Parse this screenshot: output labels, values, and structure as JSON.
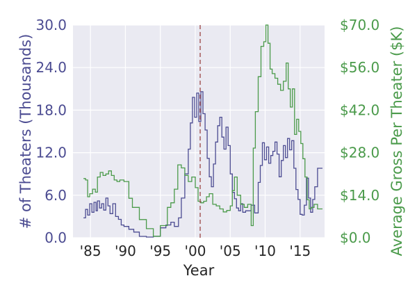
{
  "chart_data": {
    "type": "line",
    "xlabel": "Year",
    "ylabel_left": "# of Theaters (Thousands)",
    "ylabel_right": "Average Gross Per Theater ($K)",
    "xlim": [
      1982.5,
      2018.5
    ],
    "ylim_left": [
      0,
      30
    ],
    "ylim_right": [
      0,
      70
    ],
    "left_ticks": [
      "0.0",
      "6.0",
      "12.0",
      "18.0",
      "24.0",
      "30.0"
    ],
    "right_ticks": [
      "$0.0",
      "$14.0",
      "$28.0",
      "$42.0",
      "$56.0",
      "$70.0"
    ],
    "x_ticks": [
      {
        "value": 1985,
        "label": "'85"
      },
      {
        "value": 1990,
        "label": "'90"
      },
      {
        "value": 1995,
        "label": "'95"
      },
      {
        "value": 2000,
        "label": "'00"
      },
      {
        "value": 2005,
        "label": "'05"
      },
      {
        "value": 2010,
        "label": "'10"
      },
      {
        "value": 2015,
        "label": "'15"
      }
    ],
    "vline": {
      "x": 2000.7,
      "style": "dashed",
      "color": "#a05050"
    },
    "grid": true,
    "colors": {
      "left": "#4b4b91",
      "right": "#4a9a4a",
      "background": "#eaeaf2",
      "grid": "#ffffff"
    },
    "series": [
      {
        "name": "# of Theaters (Thousands)",
        "axis": "left",
        "color": "#4b4b91",
        "x": [
          1984.0,
          1984.3,
          1984.6,
          1984.9,
          1985.2,
          1985.5,
          1985.8,
          1986.0,
          1986.3,
          1986.6,
          1986.9,
          1987.2,
          1987.5,
          1987.8,
          1988.2,
          1988.6,
          1989.0,
          1989.4,
          1989.8,
          1990.5,
          1991.2,
          1992.0,
          1993.0,
          1994.0,
          1995.0,
          1995.8,
          1996.5,
          1997.0,
          1997.6,
          1998.0,
          1998.5,
          1999.0,
          1999.3,
          1999.6,
          1999.9,
          2000.2,
          2000.5,
          2000.8,
          2001.1,
          2001.4,
          2001.7,
          2002.0,
          2002.3,
          2002.6,
          2002.9,
          2003.2,
          2003.5,
          2003.8,
          2004.1,
          2004.4,
          2004.7,
          2005.0,
          2005.3,
          2005.6,
          2005.9,
          2006.2,
          2006.5,
          2006.8,
          2007.2,
          2007.6,
          2008.0,
          2008.5,
          2009.0,
          2009.3,
          2009.6,
          2009.9,
          2010.2,
          2010.5,
          2010.8,
          2011.1,
          2011.4,
          2011.7,
          2012.0,
          2012.3,
          2012.6,
          2012.9,
          2013.2,
          2013.5,
          2013.8,
          2014.1,
          2014.4,
          2014.7,
          2015.0,
          2015.3,
          2015.6,
          2015.9,
          2016.2,
          2016.5,
          2016.8,
          2017.1,
          2017.5,
          2017.9,
          2018.2
        ],
        "values": [
          2.8,
          4.0,
          3.2,
          4.8,
          3.6,
          5.0,
          3.8,
          5.2,
          4.2,
          4.8,
          3.9,
          5.6,
          4.5,
          3.4,
          4.8,
          3.0,
          2.6,
          1.8,
          1.6,
          1.2,
          0.8,
          0.2,
          0.1,
          0.2,
          1.4,
          1.8,
          2.2,
          1.6,
          2.8,
          5.6,
          9.0,
          12.5,
          16.2,
          19.8,
          17.0,
          20.4,
          16.4,
          20.6,
          17.5,
          15.2,
          11.2,
          8.6,
          7.2,
          10.4,
          13.5,
          15.8,
          17.0,
          14.2,
          12.5,
          15.6,
          13.0,
          9.0,
          6.4,
          5.5,
          4.2,
          3.8,
          4.8,
          3.6,
          3.8,
          3.8,
          4.6,
          3.5,
          7.8,
          10.2,
          13.4,
          11.0,
          12.8,
          10.5,
          11.6,
          12.2,
          13.5,
          11.8,
          8.6,
          10.9,
          13.0,
          11.3,
          14.0,
          12.4,
          13.7,
          9.8,
          6.8,
          5.4,
          3.3,
          3.2,
          4.6,
          8.4,
          5.6,
          3.6,
          5.4,
          7.2,
          9.8,
          9.8,
          9.8
        ]
      },
      {
        "name": "Average Gross Per Theater ($K)",
        "axis": "right",
        "color": "#4a9a4a",
        "x": [
          1984.0,
          1984.3,
          1984.6,
          1984.9,
          1985.3,
          1985.7,
          1986.0,
          1986.4,
          1986.8,
          1987.2,
          1987.6,
          1988.0,
          1988.4,
          1988.8,
          1989.2,
          1989.8,
          1990.5,
          1991.0,
          1992.0,
          1993.0,
          1994.0,
          1995.0,
          1996.0,
          1996.5,
          1997.0,
          1997.5,
          1998.0,
          1998.5,
          1999.0,
          1999.5,
          2000.0,
          2000.4,
          2000.8,
          2001.2,
          2001.6,
          2002.0,
          2002.5,
          2003.0,
          2003.5,
          2004.0,
          2004.5,
          2005.0,
          2005.3,
          2005.6,
          2006.0,
          2006.5,
          2007.0,
          2007.5,
          2008.0,
          2008.3,
          2008.6,
          2009.0,
          2009.4,
          2009.8,
          2010.1,
          2010.4,
          2010.7,
          2011.0,
          2011.4,
          2011.8,
          2012.2,
          2012.6,
          2013.0,
          2013.3,
          2013.6,
          2013.9,
          2014.2,
          2014.5,
          2014.8,
          2015.1,
          2015.4,
          2015.7,
          2016.0,
          2016.3,
          2016.6,
          2017.0,
          2017.5,
          2018.2
        ],
        "values": [
          19.5,
          19.0,
          13.5,
          14.5,
          16.0,
          15.0,
          20.0,
          21.5,
          20.5,
          21.0,
          22.0,
          20.5,
          19.0,
          18.5,
          19.0,
          18.5,
          13.0,
          10.0,
          6.0,
          3.0,
          0.5,
          4.0,
          10.0,
          11.5,
          16.0,
          24.0,
          23.0,
          20.5,
          18.5,
          20.0,
          16.5,
          12.0,
          11.5,
          12.0,
          13.5,
          14.5,
          11.0,
          10.5,
          9.5,
          8.5,
          9.0,
          10.5,
          15.5,
          20.0,
          14.0,
          11.0,
          10.0,
          11.0,
          4.0,
          29.5,
          41.5,
          53.0,
          63.0,
          64.5,
          70.0,
          64.0,
          55.5,
          54.0,
          52.5,
          50.5,
          48.5,
          51.5,
          57.5,
          49.0,
          43.0,
          49.0,
          34.0,
          39.0,
          35.0,
          31.0,
          26.0,
          20.0,
          12.5,
          9.5,
          10.0,
          11.0,
          9.5,
          9.5
        ]
      }
    ]
  }
}
